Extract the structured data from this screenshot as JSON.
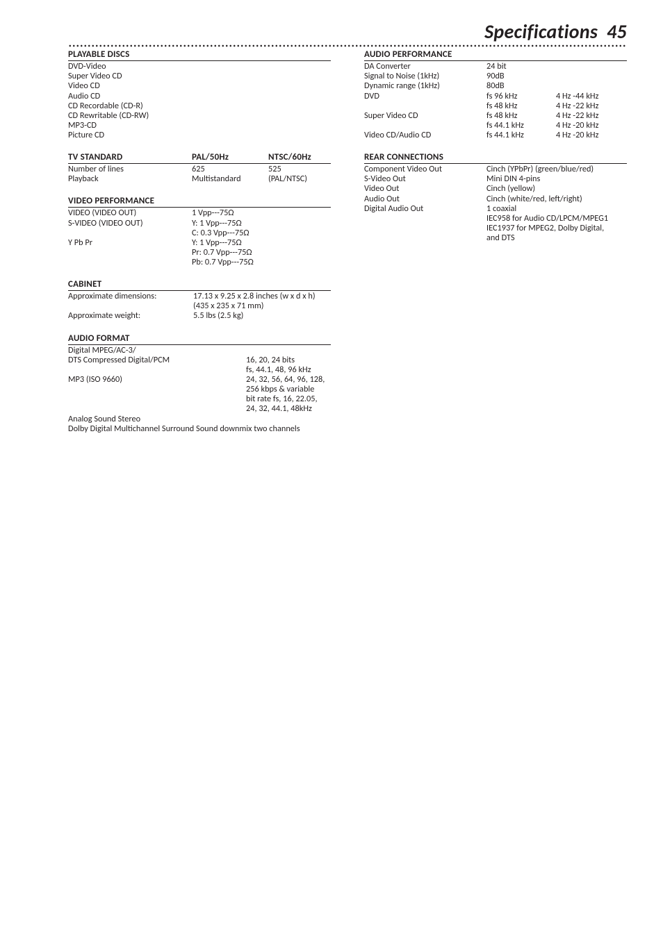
{
  "header": {
    "title": "Specifications",
    "page_number": "45"
  },
  "playable_discs": {
    "heading": "PLAYABLE DISCS",
    "items": [
      "DVD-Video",
      "Super Video CD",
      "Video CD",
      "Audio CD",
      "CD Recordable (CD-R)",
      "CD Rewritable (CD-RW)",
      "MP3-CD",
      "Picture CD"
    ]
  },
  "audio_performance": {
    "heading": "AUDIO PERFORMANCE",
    "rows": [
      {
        "a": "DA Converter",
        "b": "24 bit",
        "c": ""
      },
      {
        "a": "Signal to Noise (1kHz)",
        "b": "90dB",
        "c": ""
      },
      {
        "a": "Dynamic range (1kHz)",
        "b": "80dB",
        "c": ""
      },
      {
        "a": "DVD",
        "b": "fs 96 kHz",
        "c": "4 Hz -44 kHz"
      },
      {
        "a": "",
        "b": "fs 48 kHz",
        "c": "4 Hz -22 kHz"
      },
      {
        "a": "Super Video CD",
        "b": "fs 48 kHz",
        "c": "4 Hz -22 kHz"
      },
      {
        "a": "",
        "b": "fs 44.1 kHz",
        "c": "4 Hz -20 kHz"
      },
      {
        "a": "Video CD/Audio CD",
        "b": "fs 44.1 kHz",
        "c": "4 Hz -20 kHz"
      }
    ]
  },
  "tv_standard": {
    "heading": "TV STANDARD",
    "col2": "PAL/50Hz",
    "col3": "NTSC/60Hz",
    "rows": [
      {
        "a": "Number of lines",
        "b": "625",
        "c": "525"
      },
      {
        "a": "Playback",
        "b": "Multistandard",
        "c": "(PAL/NTSC)"
      }
    ]
  },
  "rear_connections": {
    "heading": "REAR CONNECTIONS",
    "rows": [
      {
        "a": "Component Video Out",
        "b": "Cinch (YPbPr) (green/blue/red)"
      },
      {
        "a": "S-Video Out",
        "b": "Mini DIN 4-pins"
      },
      {
        "a": "Video Out",
        "b": "Cinch (yellow)"
      },
      {
        "a": "Audio Out",
        "b": "Cinch (white/red, left/right)"
      },
      {
        "a": "Digital Audio Out",
        "b": "1 coaxial"
      },
      {
        "a": "",
        "b": "IEC958 for Audio CD/LPCM/MPEG1"
      },
      {
        "a": "",
        "b": "IEC1937 for MPEG2, Dolby Digital,"
      },
      {
        "a": "",
        "b": "and DTS"
      }
    ]
  },
  "video_performance": {
    "heading": "VIDEO PERFORMANCE",
    "rows": [
      {
        "a": "VIDEO (VIDEO OUT)",
        "b": "1 Vpp---75Ω"
      },
      {
        "a": "S-VIDEO (VIDEO OUT)",
        "b": "Y: 1 Vpp---75Ω"
      },
      {
        "a": "",
        "b": "C: 0.3 Vpp---75Ω"
      },
      {
        "a": "Y Pb Pr",
        "b": "Y: 1 Vpp---75Ω"
      },
      {
        "a": "",
        "b": "Pr: 0.7 Vpp---75Ω"
      },
      {
        "a": "",
        "b": "Pb: 0.7 Vpp---75Ω"
      }
    ]
  },
  "cabinet": {
    "heading": "CABINET",
    "rows": [
      {
        "a": "Approximate dimensions:",
        "b": "17.13 x 9.25 x 2.8 inches (w x d x h)"
      },
      {
        "a": "",
        "b": "(435 x 235 x 71 mm)"
      },
      {
        "a": "Approximate weight:",
        "b": "5.5 lbs (2.5 kg)"
      }
    ]
  },
  "audio_format": {
    "heading": "AUDIO FORMAT",
    "rows": [
      {
        "a": "Digital MPEG/AC-3/",
        "b": ""
      },
      {
        "a": "DTS Compressed Digital/PCM",
        "b": "16, 20, 24 bits"
      },
      {
        "a": "",
        "b": "fs, 44.1, 48, 96 kHz"
      },
      {
        "a": "MP3 (ISO 9660)",
        "b": "24, 32, 56, 64, 96, 128,"
      },
      {
        "a": "",
        "b": "256 kbps & variable"
      },
      {
        "a": "",
        "b": "bit rate fs, 16, 22.05,"
      },
      {
        "a": "",
        "b": "24, 32, 44.1, 48kHz"
      }
    ],
    "footer": [
      "Analog Sound Stereo",
      "Dolby Digital Multichannel Surround Sound downmix two channels"
    ]
  }
}
